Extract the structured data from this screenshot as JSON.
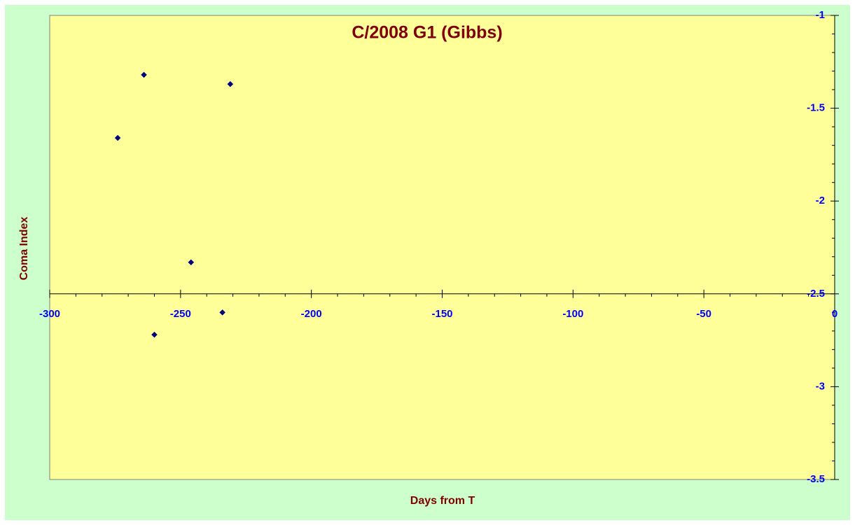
{
  "chart_data": {
    "type": "scatter",
    "title": "C/2008 G1 (Gibbs)",
    "x_label": "Days from T",
    "y_label": "Coma Index",
    "x": [
      -274,
      -264,
      -260,
      -246,
      -234,
      -231
    ],
    "series": [
      {
        "name": "Coma Index",
        "color": "#000080",
        "values": [
          -1.66,
          -1.32,
          -2.72,
          -2.33,
          -2.6,
          -1.37
        ]
      }
    ],
    "xlim": [
      -300,
      0
    ],
    "xticks": [
      -300,
      -250,
      -200,
      -150,
      -100,
      -50,
      0
    ],
    "ylim": [
      -3.5,
      -1
    ],
    "yticks": [
      -1,
      -1.5,
      -2,
      -2.5,
      -3,
      -3.5
    ],
    "grid": false
  }
}
